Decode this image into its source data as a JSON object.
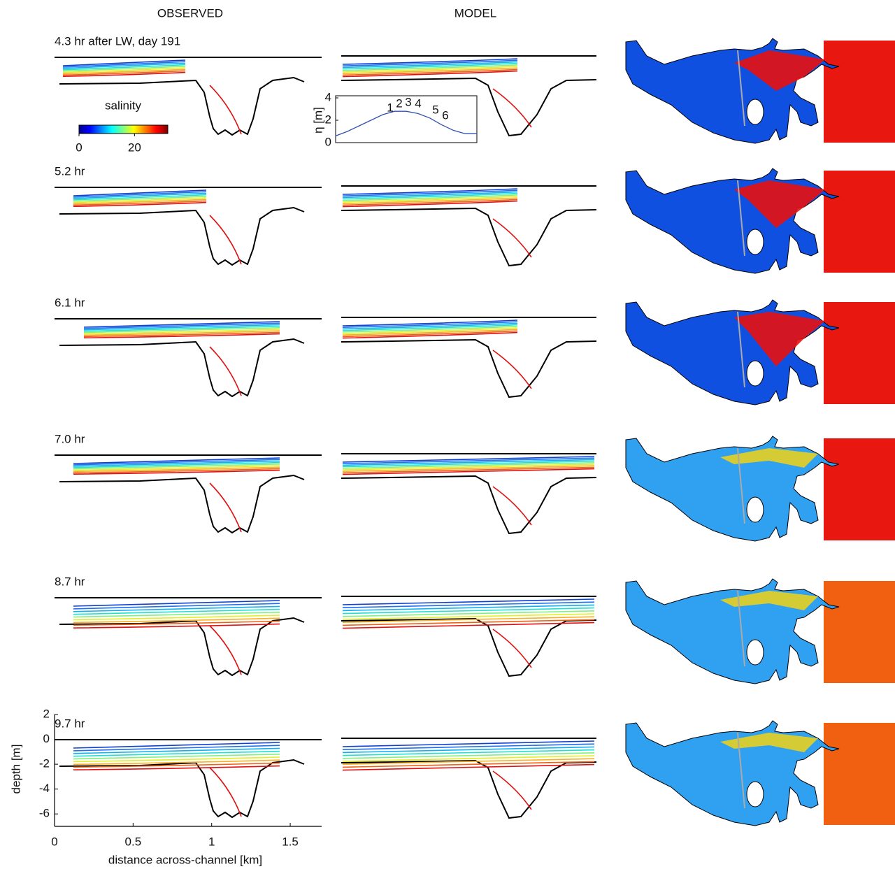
{
  "figure": {
    "columns": [
      "OBSERVED",
      "MODEL"
    ],
    "panels": [
      "4.3 hr after LW, day 191",
      "5.2 hr",
      "6.1 hr",
      "7.0 hr",
      "8.7 hr",
      "9.7 hr"
    ],
    "colorbar": {
      "label": "salinity",
      "lim": [
        0,
        32
      ],
      "ticks": [
        0,
        20
      ]
    },
    "inset": {
      "ylabel": "η [m]",
      "xlim": [
        0,
        12
      ],
      "ylim": [
        0,
        4
      ],
      "yticks": [
        0,
        2,
        4
      ],
      "x": [
        0,
        1,
        2,
        3,
        4,
        5,
        6,
        7,
        8,
        9,
        10,
        11,
        12
      ],
      "values": [
        0.6,
        1.0,
        1.5,
        2.0,
        2.5,
        2.8,
        2.8,
        2.6,
        2.2,
        1.6,
        1.1,
        0.8,
        0.8
      ],
      "labels": [
        "1",
        "2",
        "3",
        "4",
        "5",
        "6"
      ]
    },
    "axes": {
      "xlim": [
        0,
        1.7
      ],
      "xticks": [
        0,
        0.5,
        1,
        1.5
      ],
      "ylim": [
        -7,
        2
      ],
      "yticks": [
        2,
        0,
        -2,
        -4,
        -6
      ],
      "xlabel": "distance across-channel [km]",
      "ylabel": "depth [m]"
    }
  }
}
